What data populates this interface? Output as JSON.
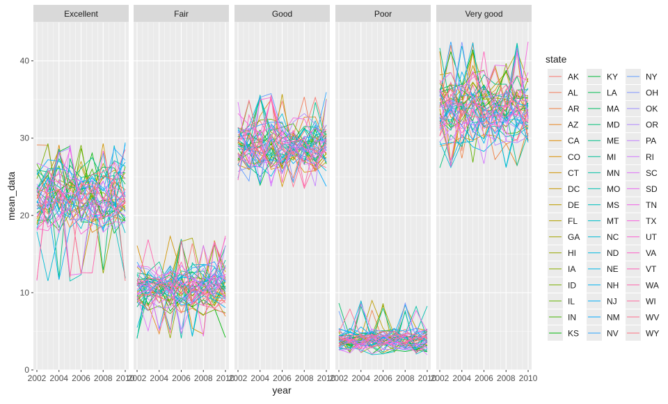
{
  "chart_data": {
    "type": "line",
    "facet_by": "response",
    "facets": [
      "Excellent",
      "Fair",
      "Good",
      "Poor",
      "Very good"
    ],
    "xlabel": "year",
    "ylabel": "mean_data",
    "x_ticks": [
      2002,
      2004,
      2006,
      2008,
      2010
    ],
    "x_range": [
      2002,
      2010
    ],
    "y_ticks": [
      0,
      10,
      20,
      30,
      40
    ],
    "ylim": [
      0,
      45
    ],
    "grid": true,
    "legend": {
      "title": "state",
      "position": "right",
      "columns": 3,
      "entries": [
        "AK",
        "AL",
        "AR",
        "AZ",
        "CA",
        "CO",
        "CT",
        "DC",
        "DE",
        "FL",
        "GA",
        "HI",
        "IA",
        "ID",
        "IL",
        "IN",
        "KS",
        "KY",
        "LA",
        "MA",
        "MD",
        "ME",
        "MI",
        "MN",
        "MO",
        "MS",
        "MT",
        "NC",
        "ND",
        "NE",
        "NH",
        "NJ",
        "NM",
        "NV",
        "NY",
        "OH",
        "OK",
        "OR",
        "PA",
        "RI",
        "SC",
        "SD",
        "TN",
        "TX",
        "UT",
        "VA",
        "VT",
        "WA",
        "WI",
        "WV",
        "WY"
      ]
    },
    "facet_ranges": {
      "Excellent": {
        "typical": [
          19,
          26
        ],
        "min": 11.5,
        "max": 29.5
      },
      "Fair": {
        "typical": [
          8,
          13
        ],
        "min": 4,
        "max": 17.5
      },
      "Good": {
        "typical": [
          26,
          32
        ],
        "min": 23.5,
        "max": 36
      },
      "Poor": {
        "typical": [
          2.5,
          5
        ],
        "min": 1.8,
        "max": 9
      },
      "Very good": {
        "typical": [
          30,
          38
        ],
        "min": 26,
        "max": 42.5
      }
    }
  },
  "colors": {
    "panel_bg": "#ebebeb",
    "strip_bg": "#d9d9d9",
    "grid_major": "#ffffff",
    "text_dark": "#1a1a1a",
    "text_axis": "#4d4d4d"
  }
}
